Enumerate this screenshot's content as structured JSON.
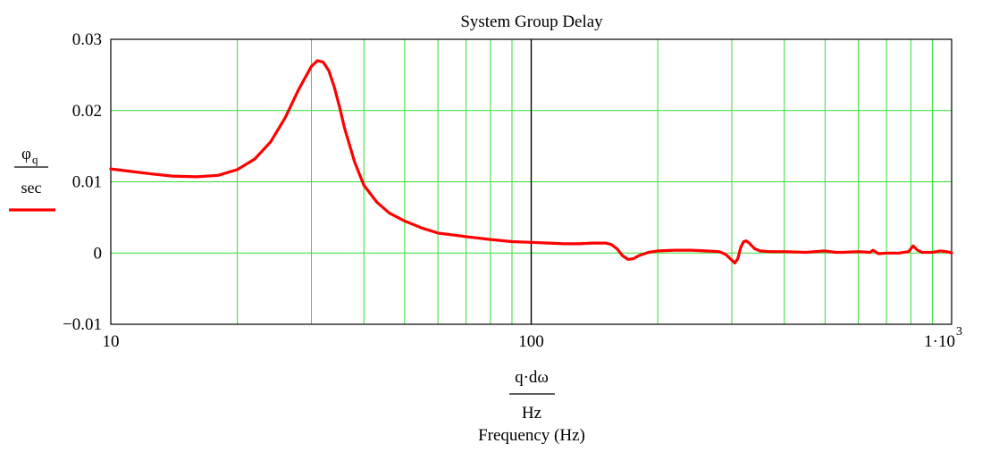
{
  "chart_data": {
    "type": "line",
    "title": "System Group Delay",
    "xlabel_num": "q·dω",
    "xlabel_den": "Hz",
    "xlabel_caption": "Frequency (Hz)",
    "ylabel_sym": "φ",
    "ylabel_sub": "q",
    "ylabel_den": "sec",
    "xscale": "log",
    "xlim": [
      10,
      1000
    ],
    "ylim": [
      -0.01,
      0.03
    ],
    "x_tick_labels": [
      {
        "value": 10,
        "text": "10"
      },
      {
        "value": 100,
        "text": "100"
      },
      {
        "value": 1000,
        "text": "1·10",
        "sup": "3"
      }
    ],
    "y_tick_labels": [
      {
        "value": 0.03,
        "text": "0.03"
      },
      {
        "value": 0.02,
        "text": "0.02"
      },
      {
        "value": 0.01,
        "text": "0.01"
      },
      {
        "value": 0,
        "text": "0"
      },
      {
        "value": -0.01,
        "text": "−0.01"
      }
    ],
    "grid": true,
    "grid_color": "#33dd33",
    "axis_color": "#000000",
    "series": [
      {
        "color": "#ff0000",
        "x": [
          10,
          11,
          12.5,
          14,
          16,
          18,
          20,
          22,
          24,
          26,
          28,
          30,
          31,
          32,
          33,
          34,
          35,
          36,
          38,
          40,
          43,
          46,
          50,
          55,
          60,
          70,
          80,
          90,
          100,
          110,
          120,
          130,
          140,
          150,
          155,
          160,
          165,
          170,
          175,
          180,
          190,
          200,
          220,
          240,
          260,
          280,
          290,
          300,
          305,
          310,
          315,
          320,
          325,
          330,
          335,
          340,
          350,
          370,
          400,
          450,
          500,
          530,
          550,
          600,
          640,
          650,
          670,
          700,
          750,
          790,
          810,
          830,
          850,
          900,
          940,
          970,
          990,
          1000
        ],
        "y": [
          0.0118,
          0.0115,
          0.0111,
          0.0108,
          0.0107,
          0.0109,
          0.0117,
          0.0132,
          0.0156,
          0.019,
          0.023,
          0.0262,
          0.027,
          0.0268,
          0.0256,
          0.0233,
          0.0205,
          0.0175,
          0.0128,
          0.0095,
          0.0071,
          0.0056,
          0.0045,
          0.0035,
          0.0028,
          0.0023,
          0.0019,
          0.0016,
          0.0015,
          0.0014,
          0.0013,
          0.0013,
          0.0014,
          0.0014,
          0.0012,
          0.0006,
          -0.0004,
          -0.0009,
          -0.0008,
          -0.0004,
          0.0001,
          0.0003,
          0.0004,
          0.0004,
          0.0003,
          0.0002,
          -0.0002,
          -0.001,
          -0.0014,
          -0.0008,
          0.0008,
          0.0016,
          0.0017,
          0.0014,
          0.001,
          0.0006,
          0.0003,
          0.0002,
          0.0002,
          0.0001,
          0.0003,
          0.0001,
          0.0001,
          0.0002,
          0.0001,
          0.0004,
          -0.0001,
          0.0,
          0.0,
          0.0002,
          0.001,
          0.0004,
          0.0001,
          0.0001,
          0.0003,
          0.0002,
          0.0001,
          0.0
        ]
      }
    ]
  }
}
